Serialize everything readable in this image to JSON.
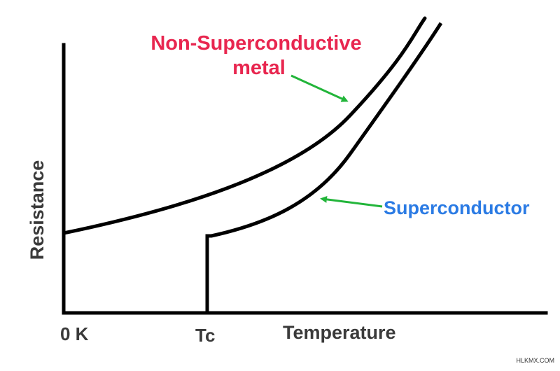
{
  "chart_data": {
    "type": "line",
    "xlabel": "Temperature",
    "ylabel": "Resistance",
    "x_ticks": [
      "0 K",
      "Tc"
    ],
    "grid": false,
    "legend": "none",
    "series": [
      {
        "label": "Non-Superconductive\nmetal",
        "label_color": "#e8264f"
      },
      {
        "label": "Superconductor",
        "label_color": "#2b7be4"
      }
    ],
    "arrow_color": "#22b53a",
    "axis_color": "#000000"
  },
  "watermark": "HLKMX.COM"
}
